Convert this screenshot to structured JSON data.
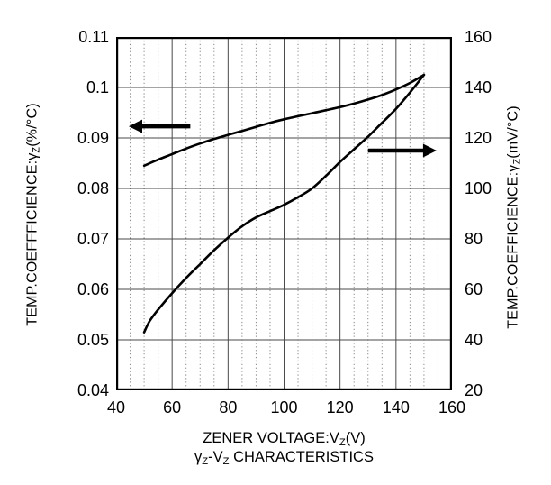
{
  "figure": {
    "background_color": "#ffffff",
    "ink_color": "#000000",
    "grid_major_color": "#4a4a4a",
    "grid_minor_color": "#8a8a8a"
  },
  "caption_segments": [
    {
      "t": "γ"
    },
    {
      "s": "Z"
    },
    {
      "t": "-V"
    },
    {
      "s": "Z"
    },
    {
      "t": " CHARACTERISTICS"
    }
  ],
  "chart_data": {
    "type": "line",
    "title": "γZ-VZ CHARACTERISTICS",
    "xlabel": "ZENER VOLTAGE:VZ(V)",
    "ylabel_left": "TEMP.COEFFFICIENCE:γZ(%/°C)",
    "ylabel_right": "TEMP.COEFFICIENCE:γZ(mV/°C)",
    "grid": {
      "vertical_major": "solid",
      "vertical_minor": "dotted",
      "horizontal_major": "solid",
      "horizontal_minor": "none"
    },
    "x": {
      "min": 40,
      "max": 160,
      "major_step": 20,
      "minor_step": 5,
      "tick_labels": [
        "40",
        "60",
        "80",
        "100",
        "120",
        "140",
        "160"
      ],
      "label_segments": [
        {
          "t": "ZENER VOLTAGE:V"
        },
        {
          "s": "Z"
        },
        {
          "t": "(V)"
        }
      ]
    },
    "y_left": {
      "min": 0.04,
      "max": 0.11,
      "major_step": 0.01,
      "tick_labels": [
        "0.11",
        "0.1",
        "0.09",
        "0.08",
        "0.07",
        "0.06",
        "0.05",
        "0.04"
      ],
      "label_segments": [
        {
          "t": "TEMP.COEFFFICIENCE:γ"
        },
        {
          "s": "Z"
        },
        {
          "t": "(%/°C)"
        }
      ]
    },
    "y_right": {
      "min": 20,
      "max": 160,
      "major_step": 20,
      "tick_labels": [
        "160",
        "140",
        "120",
        "100",
        "80",
        "60",
        "40",
        "20"
      ],
      "label_segments": [
        {
          "t": "TEMP.COEFFICIENCE:γ"
        },
        {
          "s": "Z"
        },
        {
          "t": "(mV/°C)"
        }
      ]
    },
    "series": [
      {
        "name": "temp-coefficient-percent-per-degC",
        "axis": "left",
        "points": [
          [
            50,
            0.0845
          ],
          [
            55,
            0.0857
          ],
          [
            60,
            0.0868
          ],
          [
            65,
            0.0879
          ],
          [
            70,
            0.0889
          ],
          [
            75,
            0.0898
          ],
          [
            80,
            0.0906
          ],
          [
            85,
            0.0914
          ],
          [
            90,
            0.0922
          ],
          [
            95,
            0.093
          ],
          [
            100,
            0.0937
          ],
          [
            105,
            0.0943
          ],
          [
            110,
            0.0949
          ],
          [
            115,
            0.0955
          ],
          [
            120,
            0.0961
          ],
          [
            125,
            0.0968
          ],
          [
            130,
            0.0976
          ],
          [
            135,
            0.0985
          ],
          [
            140,
            0.0996
          ],
          [
            145,
            0.1009
          ],
          [
            150,
            0.1025
          ]
        ]
      },
      {
        "name": "temp-coefficient-mV-per-degC",
        "axis": "right",
        "points": [
          [
            50,
            43
          ],
          [
            52,
            47.5
          ],
          [
            55,
            52
          ],
          [
            60,
            58.5
          ],
          [
            65,
            64.5
          ],
          [
            70,
            70
          ],
          [
            75,
            75.5
          ],
          [
            80,
            80.5
          ],
          [
            85,
            85
          ],
          [
            90,
            88.5
          ],
          [
            95,
            91
          ],
          [
            100,
            93.5
          ],
          [
            105,
            96.5
          ],
          [
            110,
            100
          ],
          [
            115,
            105
          ],
          [
            120,
            110.5
          ],
          [
            125,
            115.5
          ],
          [
            130,
            120.5
          ],
          [
            135,
            126
          ],
          [
            140,
            131.5
          ],
          [
            145,
            138
          ],
          [
            150,
            145
          ]
        ]
      }
    ],
    "annotations": [
      {
        "type": "arrow",
        "direction": "left",
        "axis": "left",
        "y_value": 0.0923,
        "x_tail": 66.5,
        "x_tip": 44.5,
        "meaning": "upper curve reads left axis"
      },
      {
        "type": "arrow",
        "direction": "right",
        "axis": "right",
        "y_value": 115,
        "x_tail": 130,
        "x_tip": 154.5,
        "meaning": "lower curve reads right axis"
      }
    ]
  }
}
